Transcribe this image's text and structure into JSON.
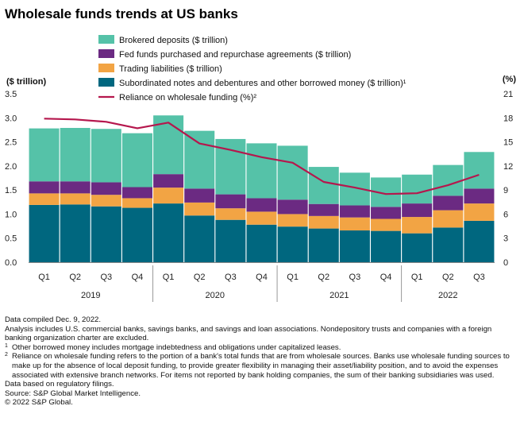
{
  "title": "Wholesale funds trends at US banks",
  "chart_data": {
    "type": "bar",
    "stacked": true,
    "categories": [
      "Q1",
      "Q2",
      "Q3",
      "Q4",
      "Q1",
      "Q2",
      "Q3",
      "Q4",
      "Q1",
      "Q2",
      "Q3",
      "Q4",
      "Q1",
      "Q2",
      "Q3"
    ],
    "years": [
      {
        "label": "2019",
        "span": 4
      },
      {
        "label": "2020",
        "span": 4
      },
      {
        "label": "2021",
        "span": 4
      },
      {
        "label": "2022",
        "span": 3
      }
    ],
    "series": [
      {
        "name": "Subordinated notes and debentures and other borrowed money ($ trillion)¹",
        "color": "#00677f",
        "values": [
          1.19,
          1.2,
          1.16,
          1.13,
          1.22,
          0.97,
          0.88,
          0.78,
          0.74,
          0.7,
          0.66,
          0.65,
          0.6,
          0.72,
          0.86
        ]
      },
      {
        "name": "Trading liabilities ($ trillion)",
        "color": "#f2a444",
        "values": [
          0.24,
          0.23,
          0.24,
          0.2,
          0.33,
          0.27,
          0.24,
          0.27,
          0.26,
          0.26,
          0.27,
          0.25,
          0.34,
          0.36,
          0.36
        ]
      },
      {
        "name": "Fed funds purchased and repurchase agreements ($ trillion)",
        "color": "#6b2a82",
        "values": [
          0.25,
          0.25,
          0.26,
          0.23,
          0.28,
          0.29,
          0.29,
          0.28,
          0.3,
          0.25,
          0.25,
          0.25,
          0.28,
          0.3,
          0.31
        ]
      },
      {
        "name": "Brokered deposits ($ trillion)",
        "color": "#55c2a8",
        "values": [
          1.1,
          1.11,
          1.11,
          1.12,
          1.22,
          1.2,
          1.15,
          1.14,
          1.12,
          0.77,
          0.68,
          0.61,
          0.6,
          0.64,
          0.76
        ]
      }
    ],
    "line": {
      "name": "Reliance on wholesale funding (%)²",
      "color": "#b5174d",
      "values": [
        17.9,
        17.8,
        17.5,
        16.7,
        17.4,
        14.8,
        14.0,
        13.1,
        12.4,
        10.0,
        9.3,
        8.5,
        8.6,
        9.6,
        10.9
      ]
    },
    "legend_order": [
      "Brokered deposits ($ trillion)",
      "Fed funds purchased and repurchase agreements ($ trillion)",
      "Trading liabilities ($ trillion)",
      "Subordinated notes and debentures and other borrowed money ($ trillion)¹",
      "Reliance on wholesale funding (%)²"
    ],
    "ylabel_left": "($ trillion)",
    "ylabel_right": "(%)",
    "ylim_left": [
      0,
      3.5
    ],
    "yticks_left": [
      "0.0",
      "0.5",
      "1.0",
      "1.5",
      "2.0",
      "2.5",
      "3.0",
      "3.5"
    ],
    "ylim_right": [
      0,
      21
    ],
    "yticks_right": [
      "0",
      "3",
      "6",
      "9",
      "12",
      "15",
      "18",
      "21"
    ],
    "grid": false,
    "legend_position": "top-left"
  },
  "notes": [
    {
      "mark": "",
      "text": "Data compiled Dec. 9, 2022."
    },
    {
      "mark": "",
      "text": "Analysis includes U.S. commercial banks, savings banks, and savings and loan associations. Nondepository trusts and companies with a foreign banking organization charter are excluded."
    },
    {
      "mark": "1",
      "text": "Other borrowed money includes mortgage indebtedness and obligations under capitalized leases."
    },
    {
      "mark": "2",
      "text": "Reliance on wholesale funding refers to the portion of a bank's total funds that are from wholesale sources. Banks use wholesale funding sources to make up for the absence of local deposit funding, to provide greater flexibility in managing their asset/liability position, and to avoid the expenses associated with extensive branch networks. For items not reported by bank holding companies, the sum of their banking subsidiaries was used."
    },
    {
      "mark": "",
      "text": "Data based on regulatory filings."
    },
    {
      "mark": "",
      "text": "Source: S&P Global Market Intelligence."
    },
    {
      "mark": "",
      "text": "© 2022 S&P Global."
    }
  ]
}
